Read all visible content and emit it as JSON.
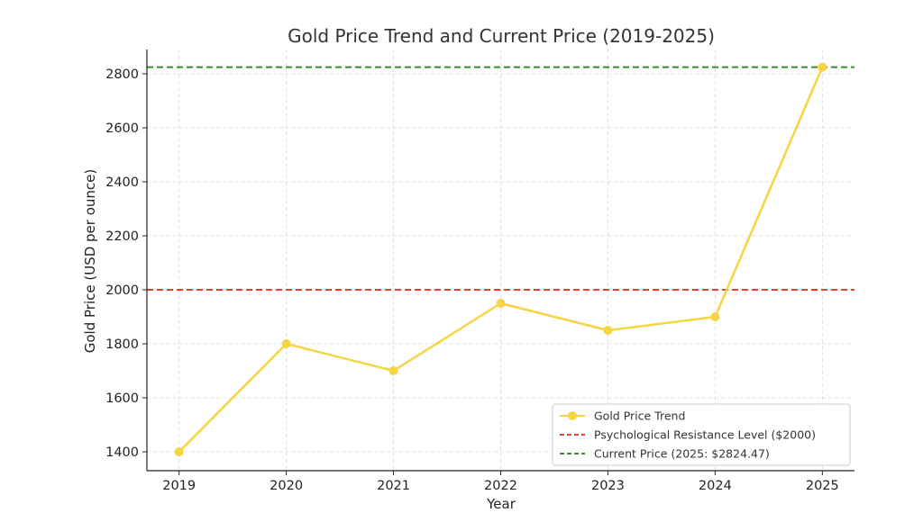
{
  "chart_data": {
    "type": "line",
    "title": "Gold Price Trend and Current Price (2019-2025)",
    "xlabel": "Year",
    "ylabel": "Gold Price (USD per ounce)",
    "x": [
      2019,
      2020,
      2021,
      2022,
      2023,
      2024,
      2025
    ],
    "x_tick_labels": [
      "2019",
      "2020",
      "2021",
      "2022",
      "2023",
      "2024",
      "2025"
    ],
    "xlim": [
      2018.7,
      2025.3
    ],
    "ylim": [
      1330,
      2890
    ],
    "y_ticks": [
      1400,
      1600,
      1800,
      2000,
      2200,
      2400,
      2600,
      2800
    ],
    "y_tick_labels": [
      "1400",
      "1600",
      "1800",
      "2000",
      "2200",
      "2400",
      "2600",
      "2800"
    ],
    "grid": true,
    "legend_position": "bottom-right",
    "series": [
      {
        "name": "Gold Price Trend",
        "values": [
          1400,
          1800,
          1700,
          1950,
          1850,
          1900,
          2824.47
        ],
        "color": "#f6d442",
        "marker": "circle"
      }
    ],
    "reference_lines": [
      {
        "name": "Psychological Resistance Level ($2000)",
        "y": 2000,
        "color": "#e8402f",
        "style": "dashed"
      },
      {
        "name": "Current Price (2025: $2824.47)",
        "y": 2824.47,
        "color": "#3a8a2e",
        "style": "dashed"
      }
    ]
  }
}
